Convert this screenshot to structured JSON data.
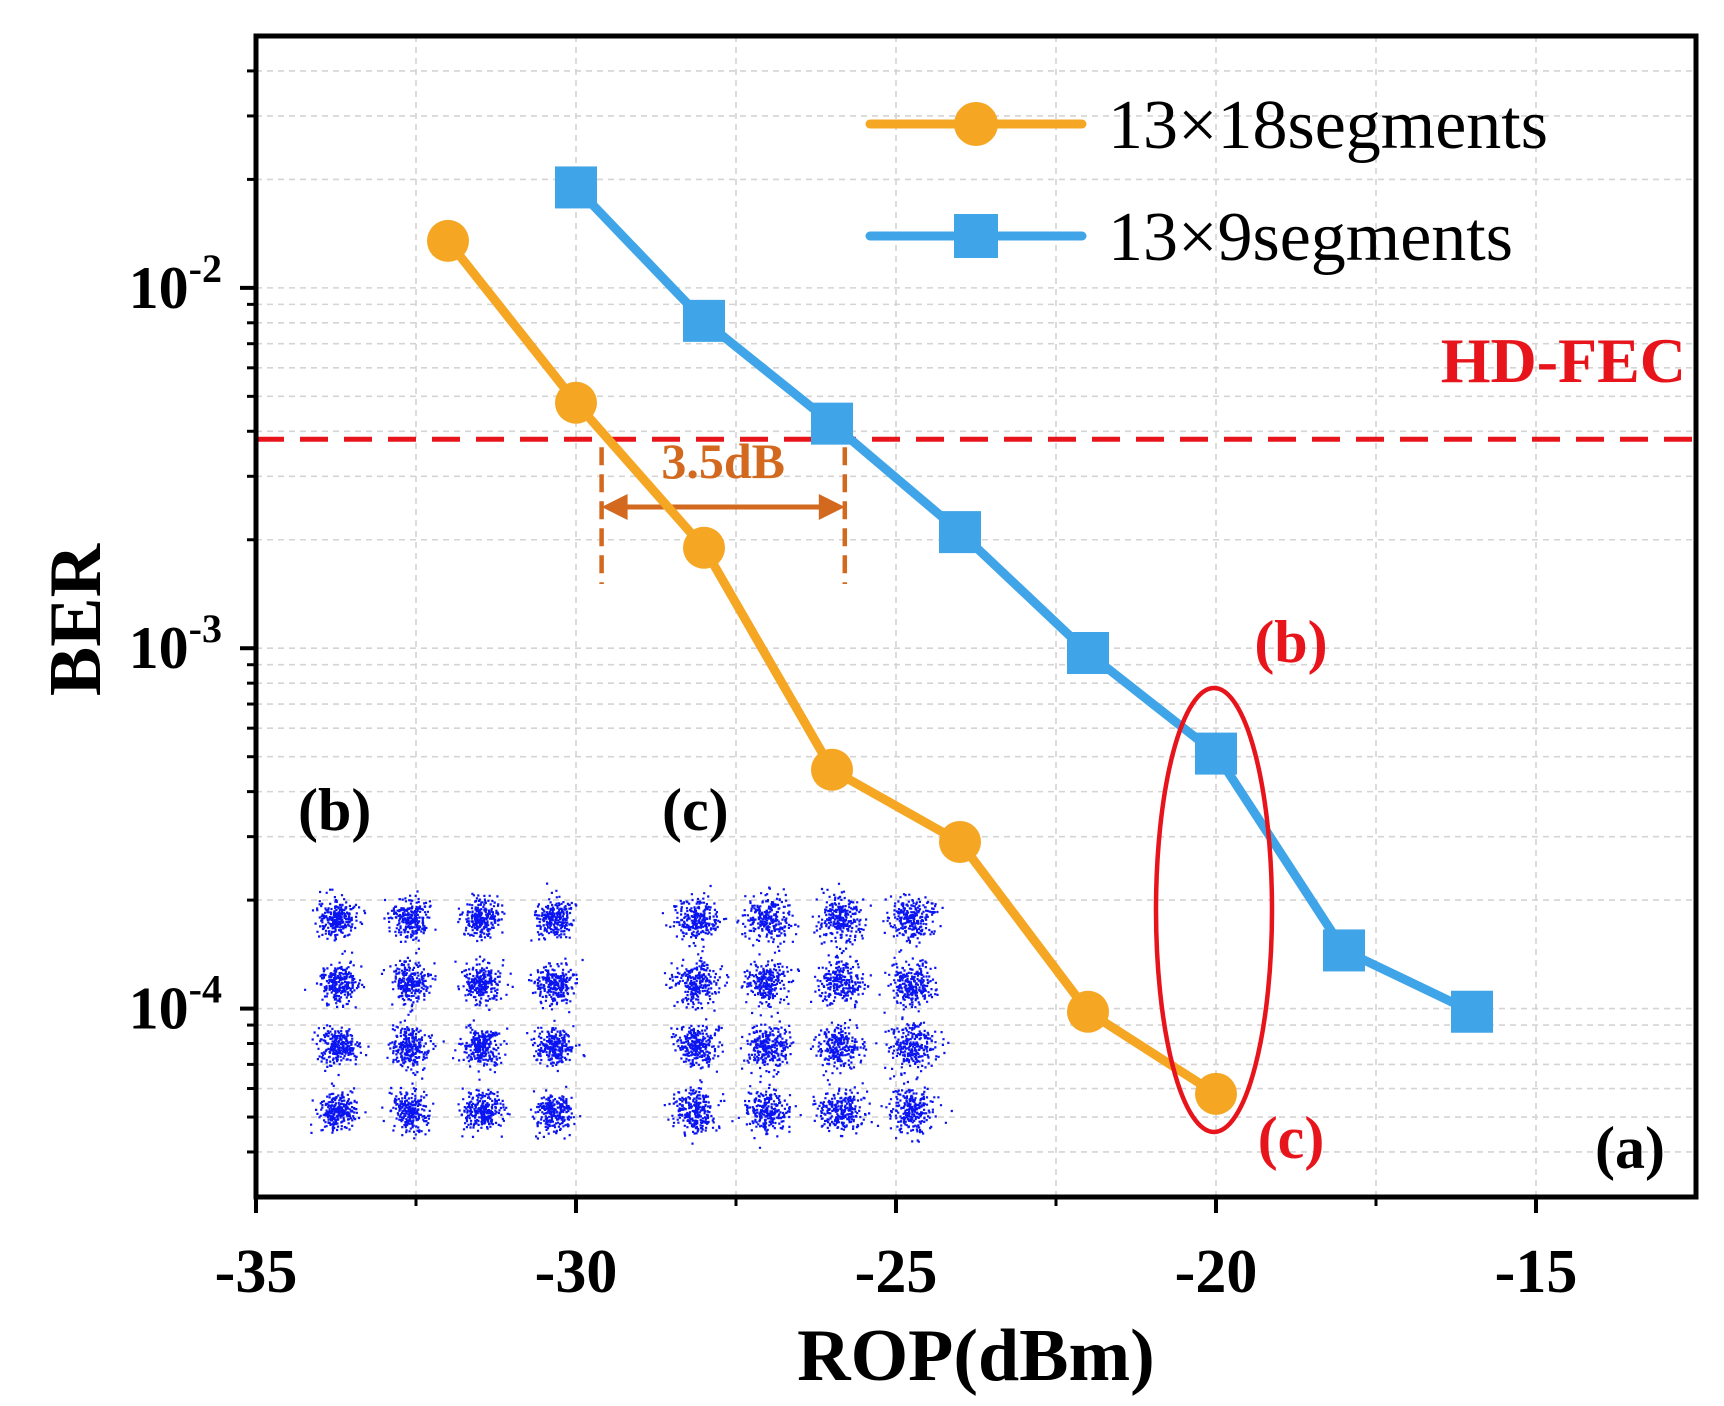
{
  "chart_data": {
    "type": "line",
    "xlabel": "ROP(dBm)",
    "ylabel": "BER",
    "xlim": [
      -35,
      -12.5
    ],
    "ylim": [
      3e-05,
      0.05
    ],
    "yscale": "log",
    "grid": true,
    "legend_position": "top-right",
    "x_ticks": [
      "-35",
      "-30",
      "-25",
      "-20",
      "-15"
    ],
    "y_ticks": [
      {
        "base": "10",
        "exp": "-2"
      },
      {
        "base": "10",
        "exp": "-3"
      },
      {
        "base": "10",
        "exp": "-4"
      }
    ],
    "series": [
      {
        "name": "13×18segments",
        "color": "#F5A623",
        "marker": "circle",
        "x": [
          -32,
          -30,
          -28,
          -26,
          -24,
          -22,
          -20
        ],
        "y": [
          0.0135,
          0.0048,
          0.0019,
          0.00046,
          0.00029,
          9.8e-05,
          5.8e-05
        ]
      },
      {
        "name": "13×9segments",
        "color": "#3FA5E8",
        "marker": "square",
        "x": [
          -30,
          -28,
          -26,
          -24,
          -22,
          -20,
          -18,
          -16
        ],
        "y": [
          0.019,
          0.0081,
          0.0042,
          0.0021,
          0.00097,
          0.00051,
          0.000145,
          9.8e-05
        ]
      }
    ],
    "threshold": {
      "label": "HD-FEC",
      "value": 0.0038,
      "color": "#E8141C"
    },
    "annotations": {
      "gap_label": "3.5dB",
      "gap_x": [
        -29.6,
        -25.8
      ],
      "gap_color": "#D2691E",
      "highlight_label_top": "(b)",
      "highlight_label_bottom": "(c)",
      "highlight_color": "#E8141C",
      "panel_label": "(a)",
      "inset_b_label": "(b)",
      "inset_c_label": "(c)",
      "constellation_color": "#0A14F0"
    }
  }
}
